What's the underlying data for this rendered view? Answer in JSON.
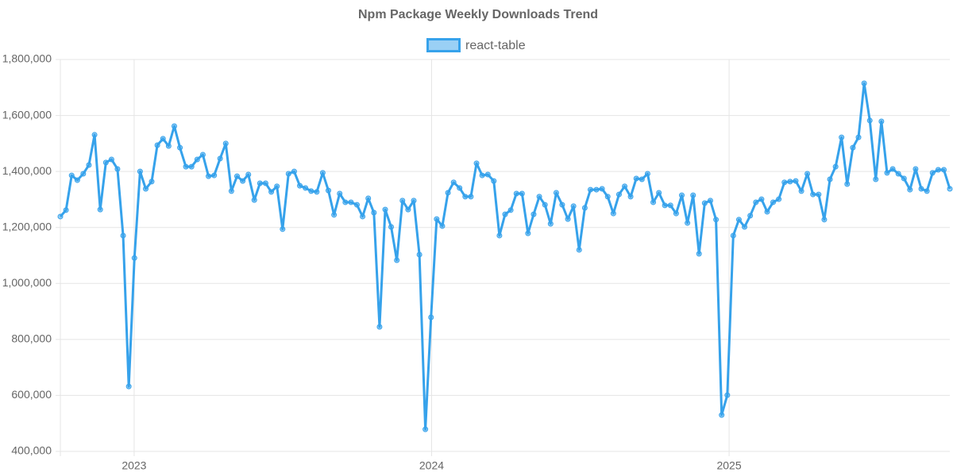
{
  "chart_data": {
    "type": "line",
    "title": "Npm Package Weekly Downloads Trend",
    "x": [
      2022.752,
      2022.771,
      2022.79,
      2022.809,
      2022.829,
      2022.848,
      2022.867,
      2022.886,
      2022.905,
      2022.924,
      2022.944,
      2022.963,
      2022.982,
      2023.001,
      2023.02,
      2023.039,
      2023.059,
      2023.078,
      2023.097,
      2023.116,
      2023.135,
      2023.154,
      2023.174,
      2023.193,
      2023.212,
      2023.231,
      2023.25,
      2023.269,
      2023.289,
      2023.308,
      2023.327,
      2023.346,
      2023.365,
      2023.384,
      2023.404,
      2023.423,
      2023.442,
      2023.461,
      2023.48,
      2023.499,
      2023.519,
      2023.538,
      2023.557,
      2023.576,
      2023.595,
      2023.614,
      2023.634,
      2023.653,
      2023.672,
      2023.691,
      2023.71,
      2023.729,
      2023.749,
      2023.768,
      2023.787,
      2023.806,
      2023.825,
      2023.844,
      2023.864,
      2023.883,
      2023.902,
      2023.921,
      2023.94,
      2023.959,
      2023.979,
      2023.998,
      2024.017,
      2024.036,
      2024.055,
      2024.074,
      2024.094,
      2024.113,
      2024.132,
      2024.151,
      2024.17,
      2024.189,
      2024.209,
      2024.228,
      2024.247,
      2024.266,
      2024.285,
      2024.304,
      2024.324,
      2024.343,
      2024.362,
      2024.381,
      2024.4,
      2024.419,
      2024.439,
      2024.458,
      2024.477,
      2024.496,
      2024.515,
      2024.534,
      2024.554,
      2024.573,
      2024.592,
      2024.611,
      2024.63,
      2024.649,
      2024.669,
      2024.688,
      2024.707,
      2024.726,
      2024.745,
      2024.764,
      2024.784,
      2024.803,
      2024.822,
      2024.841,
      2024.86,
      2024.879,
      2024.899,
      2024.918,
      2024.937,
      2024.956,
      2024.975,
      2024.994,
      2025.014,
      2025.033,
      2025.052,
      2025.071,
      2025.09,
      2025.109,
      2025.128,
      2025.148,
      2025.167,
      2025.186,
      2025.205,
      2025.224,
      2025.243,
      2025.263,
      2025.282,
      2025.301,
      2025.32,
      2025.339,
      2025.358,
      2025.378,
      2025.397,
      2025.416,
      2025.435,
      2025.454,
      2025.473,
      2025.493,
      2025.512,
      2025.531,
      2025.55,
      2025.569,
      2025.588,
      2025.608,
      2025.627,
      2025.646,
      2025.665,
      2025.684,
      2025.703,
      2025.722,
      2025.742
    ],
    "series": [
      {
        "name": "react-table",
        "color": "#36a2eb",
        "values": [
          1239000,
          1262000,
          1386000,
          1369000,
          1392000,
          1423000,
          1531000,
          1264000,
          1432000,
          1443000,
          1409000,
          1171000,
          632000,
          1091000,
          1400000,
          1338000,
          1364000,
          1494000,
          1517000,
          1491000,
          1562000,
          1485000,
          1417000,
          1417000,
          1443000,
          1460000,
          1383000,
          1386000,
          1446000,
          1500000,
          1330000,
          1383000,
          1366000,
          1389000,
          1298000,
          1358000,
          1358000,
          1327000,
          1347000,
          1194000,
          1392000,
          1400000,
          1349000,
          1341000,
          1330000,
          1327000,
          1395000,
          1332000,
          1245000,
          1321000,
          1290000,
          1290000,
          1281000,
          1239000,
          1304000,
          1253000,
          845000,
          1264000,
          1202000,
          1083000,
          1296000,
          1264000,
          1296000,
          1103000,
          479000,
          879000,
          1230000,
          1205000,
          1324000,
          1361000,
          1341000,
          1310000,
          1310000,
          1429000,
          1386000,
          1389000,
          1366000,
          1171000,
          1247000,
          1262000,
          1321000,
          1321000,
          1179000,
          1247000,
          1310000,
          1281000,
          1213000,
          1324000,
          1281000,
          1230000,
          1276000,
          1120000,
          1270000,
          1335000,
          1335000,
          1338000,
          1310000,
          1250000,
          1318000,
          1347000,
          1310000,
          1375000,
          1372000,
          1392000,
          1290000,
          1324000,
          1279000,
          1279000,
          1250000,
          1315000,
          1216000,
          1315000,
          1106000,
          1287000,
          1296000,
          1228000,
          530000,
          601000,
          1171000,
          1228000,
          1202000,
          1242000,
          1290000,
          1301000,
          1256000,
          1290000,
          1301000,
          1361000,
          1364000,
          1366000,
          1330000,
          1392000,
          1318000,
          1318000,
          1228000,
          1372000,
          1417000,
          1522000,
          1355000,
          1485000,
          1522000,
          1715000,
          1582000,
          1372000,
          1579000,
          1395000,
          1409000,
          1392000,
          1375000,
          1335000,
          1409000,
          1338000,
          1330000,
          1395000,
          1406000,
          1406000,
          1338000
        ]
      }
    ],
    "xlim": [
      2022.752,
      2025.742
    ],
    "xticks": [
      2023,
      2024,
      2025
    ],
    "ylim": [
      400000,
      1800000
    ],
    "yticks": [
      {
        "value": 400000,
        "label": "400,000"
      },
      {
        "value": 600000,
        "label": "600,000"
      },
      {
        "value": 800000,
        "label": "800,000"
      },
      {
        "value": 1000000,
        "label": "1,000,000"
      },
      {
        "value": 1200000,
        "label": "1,200,000"
      },
      {
        "value": 1400000,
        "label": "1,400,000"
      },
      {
        "value": 1600000,
        "label": "1,600,000"
      },
      {
        "value": 1800000,
        "label": "1,800,000"
      }
    ],
    "grid": true,
    "legend": "top"
  }
}
